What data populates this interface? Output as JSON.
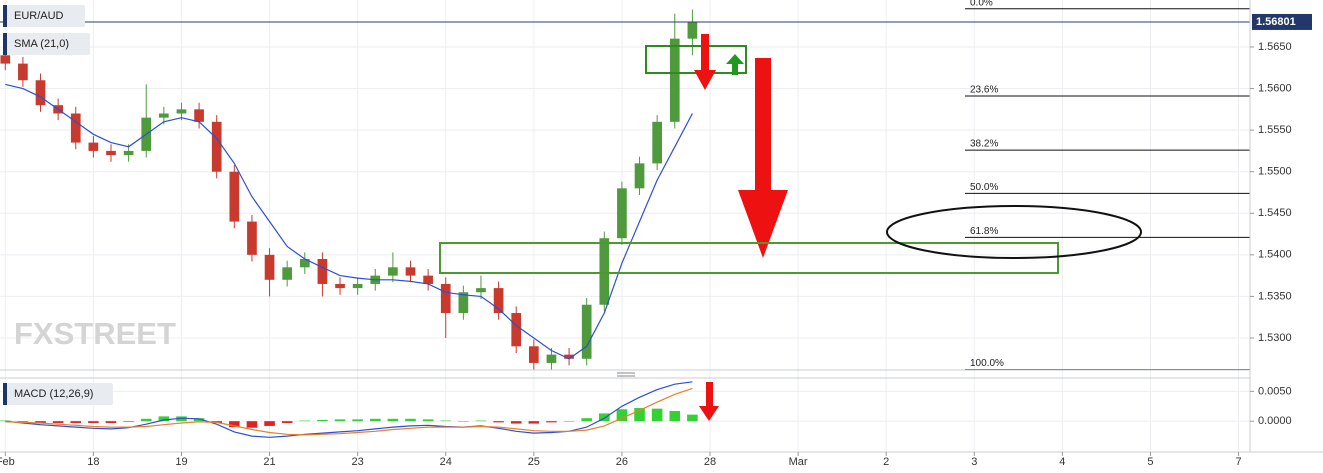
{
  "chart_data": [
    {
      "type": "candlestick",
      "symbol": "EUR/AUD",
      "indicator": "SMA (21,0)",
      "watermark": "FXSTREET",
      "x": [
        0,
        0.2,
        0.4,
        0.6,
        0.8,
        1.0,
        1.2,
        1.4,
        1.6,
        1.8,
        2.0,
        2.2,
        2.4,
        2.6,
        2.8,
        3.0,
        3.2,
        3.4,
        3.6,
        3.8,
        4.0,
        4.2,
        4.4,
        4.6,
        4.8,
        5.0,
        5.2,
        5.4,
        5.6,
        5.8,
        6.0,
        6.2,
        6.4,
        6.6,
        6.8,
        7.0,
        7.2,
        7.4,
        7.6,
        7.8
      ],
      "open": [
        1.564,
        1.563,
        1.561,
        1.558,
        1.557,
        1.5535,
        1.5525,
        1.552,
        1.5525,
        1.5565,
        1.557,
        1.5575,
        1.556,
        1.55,
        1.544,
        1.54,
        1.537,
        1.5385,
        1.5395,
        1.5365,
        1.536,
        1.5365,
        1.5375,
        1.5385,
        1.5375,
        1.5365,
        1.533,
        1.5355,
        1.536,
        1.533,
        1.529,
        1.527,
        1.528,
        1.5275,
        1.534,
        1.542,
        1.548,
        1.551,
        1.556,
        1.566
      ],
      "high": [
        1.5648,
        1.5638,
        1.5618,
        1.5588,
        1.5578,
        1.5543,
        1.5533,
        1.5533,
        1.5605,
        1.5578,
        1.5583,
        1.5583,
        1.5568,
        1.5508,
        1.5448,
        1.5408,
        1.5393,
        1.5403,
        1.5403,
        1.5373,
        1.5373,
        1.5383,
        1.5403,
        1.5393,
        1.5383,
        1.5373,
        1.5363,
        1.5375,
        1.5368,
        1.5338,
        1.5298,
        1.5288,
        1.5288,
        1.5348,
        1.5428,
        1.5488,
        1.5518,
        1.5568,
        1.569,
        1.5695
      ],
      "low": [
        1.5622,
        1.5602,
        1.5572,
        1.5562,
        1.5527,
        1.5517,
        1.5512,
        1.5512,
        1.5517,
        1.5557,
        1.5562,
        1.5552,
        1.5492,
        1.5432,
        1.5392,
        1.535,
        1.5362,
        1.5377,
        1.535,
        1.5352,
        1.5352,
        1.5357,
        1.5367,
        1.5367,
        1.5357,
        1.53,
        1.5322,
        1.5347,
        1.5322,
        1.5282,
        1.5262,
        1.5262,
        1.5267,
        1.5267,
        1.5332,
        1.5412,
        1.5472,
        1.5502,
        1.5552,
        1.564
      ],
      "close": [
        1.563,
        1.561,
        1.558,
        1.557,
        1.5535,
        1.5525,
        1.552,
        1.5525,
        1.5565,
        1.557,
        1.5575,
        1.556,
        1.55,
        1.544,
        1.54,
        1.537,
        1.5385,
        1.5395,
        1.5365,
        1.536,
        1.5365,
        1.5375,
        1.5385,
        1.5375,
        1.5365,
        1.533,
        1.5355,
        1.536,
        1.533,
        1.529,
        1.527,
        1.528,
        1.5275,
        1.534,
        1.542,
        1.548,
        1.551,
        1.556,
        1.566,
        1.568
      ],
      "sma": [
        1.5605,
        1.56,
        1.559,
        1.5575,
        1.556,
        1.5545,
        1.5535,
        1.553,
        1.5545,
        1.556,
        1.5565,
        1.556,
        1.554,
        1.551,
        1.547,
        1.544,
        1.541,
        1.5395,
        1.5385,
        1.5375,
        1.5372,
        1.537,
        1.537,
        1.5368,
        1.5365,
        1.5355,
        1.5352,
        1.535,
        1.5335,
        1.5315,
        1.53,
        1.5285,
        1.5275,
        1.529,
        1.533,
        1.539,
        1.544,
        1.549,
        1.553,
        1.557
      ],
      "up_color": "#4e9a3c",
      "down_color": "#c83a2e",
      "sma_color": "#2b4fd8",
      "last_price": 1.56801,
      "fib_levels": [
        {
          "label": "0.0%",
          "price": 1.5696
        },
        {
          "label": "23.6%",
          "price": 1.5591
        },
        {
          "label": "38.2%",
          "price": 1.5526
        },
        {
          "label": "50.0%",
          "price": 1.5474
        },
        {
          "label": "61.8%",
          "price": 1.5421
        },
        {
          "label": "100.0%",
          "price": 1.5262
        }
      ],
      "xlim": [
        -0.06,
        14.13
      ],
      "ylim": [
        1.52615,
        1.57065
      ],
      "xticks": [
        {
          "value": 0,
          "label": "Feb"
        },
        {
          "value": 1,
          "label": "18"
        },
        {
          "value": 2,
          "label": "19"
        },
        {
          "value": 3,
          "label": "21"
        },
        {
          "value": 4,
          "label": "23"
        },
        {
          "value": 5,
          "label": "24"
        },
        {
          "value": 6,
          "label": "25"
        },
        {
          "value": 7,
          "label": "26"
        },
        {
          "value": 8,
          "label": "28"
        },
        {
          "value": 9,
          "label": "Mar"
        },
        {
          "value": 10,
          "label": "2"
        },
        {
          "value": 11,
          "label": "3"
        },
        {
          "value": 12,
          "label": "4"
        },
        {
          "value": 13,
          "label": "5"
        },
        {
          "value": 14,
          "label": "7"
        }
      ],
      "yticks": [
        {
          "value": 1.53,
          "label": "1.5300"
        },
        {
          "value": 1.535,
          "label": "1.5350"
        },
        {
          "value": 1.54,
          "label": "1.5400"
        },
        {
          "value": 1.545,
          "label": "1.5450"
        },
        {
          "value": 1.55,
          "label": "1.5500"
        },
        {
          "value": 1.555,
          "label": "1.5550"
        },
        {
          "value": 1.56,
          "label": "1.5600"
        },
        {
          "value": 1.565,
          "label": "1.5650"
        }
      ],
      "grid": true
    },
    {
      "type": "macd",
      "indicator": "MACD (12,26,9)",
      "x": [
        0,
        0.2,
        0.4,
        0.6,
        0.8,
        1.0,
        1.2,
        1.4,
        1.6,
        1.8,
        2.0,
        2.2,
        2.4,
        2.6,
        2.8,
        3.0,
        3.2,
        3.4,
        3.6,
        3.8,
        4.0,
        4.2,
        4.4,
        4.6,
        4.8,
        5.0,
        5.2,
        5.4,
        5.6,
        5.8,
        6.0,
        6.2,
        6.4,
        6.6,
        6.8,
        7.0,
        7.2,
        7.4,
        7.6,
        7.8
      ],
      "series": [
        {
          "name": "MACD",
          "color": "#2b4fd8",
          "values": [
            0.0,
            -0.0003,
            -0.0006,
            -0.0008,
            -0.001,
            -0.0012,
            -0.0013,
            -0.0011,
            -0.0005,
            0.0002,
            0.0005,
            0.0004,
            -0.0005,
            -0.0018,
            -0.0025,
            -0.0027,
            -0.0025,
            -0.0022,
            -0.002,
            -0.0018,
            -0.0016,
            -0.0013,
            -0.001,
            -0.0008,
            -0.0007,
            -0.0009,
            -0.001,
            -0.0008,
            -0.0012,
            -0.0017,
            -0.002,
            -0.0019,
            -0.0017,
            -0.001,
            0.0005,
            0.0025,
            0.004,
            0.0053,
            0.0062,
            0.0066
          ]
        },
        {
          "name": "Signal",
          "color": "#e8802c",
          "values": [
            -0.0001,
            -0.0002,
            -0.0003,
            -0.0005,
            -0.0007,
            -0.0009,
            -0.001,
            -0.001,
            -0.0009,
            -0.0006,
            -0.0003,
            -0.0001,
            -0.0002,
            -0.0008,
            -0.0014,
            -0.0019,
            -0.0022,
            -0.0023,
            -0.0022,
            -0.0021,
            -0.0019,
            -0.0017,
            -0.0014,
            -0.0012,
            -0.001,
            -0.001,
            -0.001,
            -0.0009,
            -0.001,
            -0.0013,
            -0.0016,
            -0.0017,
            -0.0017,
            -0.0015,
            -0.0008,
            0.0005,
            0.0018,
            0.0032,
            0.0045,
            0.0055
          ]
        }
      ],
      "histogram": [
        0.0001,
        -0.0001,
        -0.0003,
        -0.0003,
        -0.0003,
        -0.0003,
        -0.0003,
        -0.0001,
        0.0004,
        0.0008,
        0.0008,
        0.0005,
        -0.0003,
        -0.001,
        -0.0011,
        -0.0008,
        -0.0003,
        0.0001,
        0.0002,
        0.0003,
        0.0003,
        0.0004,
        0.0004,
        0.0004,
        0.0003,
        0.0001,
        0.0,
        0.0001,
        -0.0002,
        -0.0004,
        -0.0004,
        -0.0002,
        0.0,
        0.0005,
        0.0013,
        0.002,
        0.0022,
        0.0021,
        0.0017,
        0.0011
      ],
      "hist_up_color": "#33d133",
      "hist_down_color": "#e52020",
      "xlim": [
        -0.06,
        14.13
      ],
      "ylim": [
        -0.00517,
        0.00724
      ],
      "yticks": [
        {
          "value": 0,
          "label": "0.0000"
        },
        {
          "value": 0.005,
          "label": "0.0050"
        }
      ],
      "grid": true
    }
  ]
}
